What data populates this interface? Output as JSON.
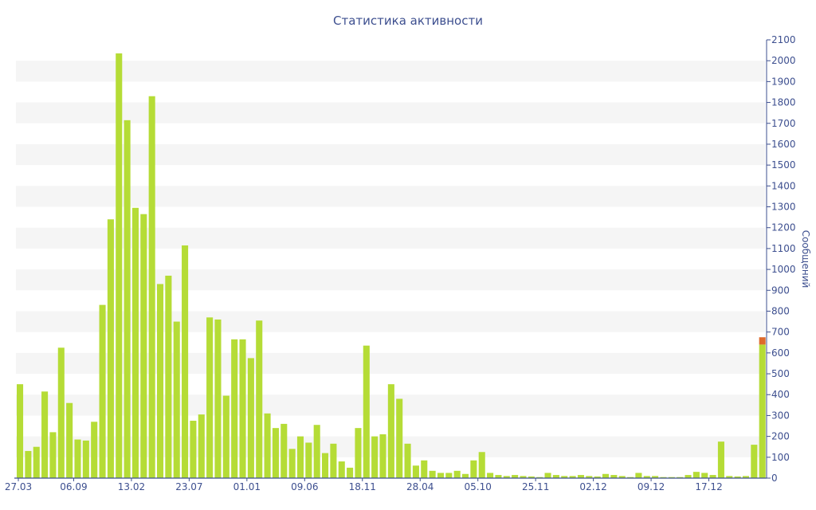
{
  "chart_data": {
    "type": "bar",
    "title": "Статистика активности",
    "xlabel": "",
    "ylabel": "Сообщений",
    "ylim": [
      0,
      2100
    ],
    "y_axis_position": "right",
    "grid": true,
    "yticks": [
      0,
      100,
      200,
      300,
      400,
      500,
      600,
      700,
      800,
      900,
      1000,
      1100,
      1200,
      1300,
      1400,
      1500,
      1600,
      1700,
      1800,
      1900,
      2000,
      2100
    ],
    "xtick_labels": [
      {
        "index": 0,
        "label": "27.03"
      },
      {
        "index": 7,
        "label": "06.09"
      },
      {
        "index": 14,
        "label": "13.02"
      },
      {
        "index": 21,
        "label": "23.07"
      },
      {
        "index": 28,
        "label": "01.01"
      },
      {
        "index": 35,
        "label": "09.06"
      },
      {
        "index": 42,
        "label": "18.11"
      },
      {
        "index": 49,
        "label": "28.04"
      },
      {
        "index": 56,
        "label": "05.10"
      },
      {
        "index": 63,
        "label": "25.11"
      },
      {
        "index": 70,
        "label": "02.12"
      },
      {
        "index": 77,
        "label": "09.12"
      },
      {
        "index": 84,
        "label": "17.12"
      }
    ],
    "colors": {
      "bar": "#b5dc36",
      "highlight": "#de6a2c",
      "text": "#3d4f8f",
      "axis": "#3d4f8f",
      "band": "#f5f5f5"
    },
    "values": [
      450,
      130,
      150,
      415,
      220,
      625,
      360,
      185,
      180,
      270,
      830,
      1240,
      2035,
      1715,
      1295,
      1265,
      1830,
      930,
      970,
      750,
      1115,
      275,
      305,
      770,
      760,
      395,
      665,
      665,
      575,
      755,
      310,
      240,
      260,
      140,
      200,
      170,
      255,
      120,
      165,
      80,
      50,
      240,
      635,
      200,
      210,
      450,
      380,
      165,
      60,
      85,
      35,
      25,
      25,
      35,
      20,
      85,
      125,
      25,
      15,
      10,
      15,
      10,
      8,
      5,
      25,
      15,
      10,
      10,
      15,
      10,
      8,
      20,
      15,
      10,
      5,
      25,
      10,
      10,
      5,
      5,
      5,
      15,
      30,
      25,
      15,
      175,
      10,
      8,
      10,
      160,
      640
    ],
    "highlight_extra": {
      "index": 90,
      "value": 35
    }
  }
}
